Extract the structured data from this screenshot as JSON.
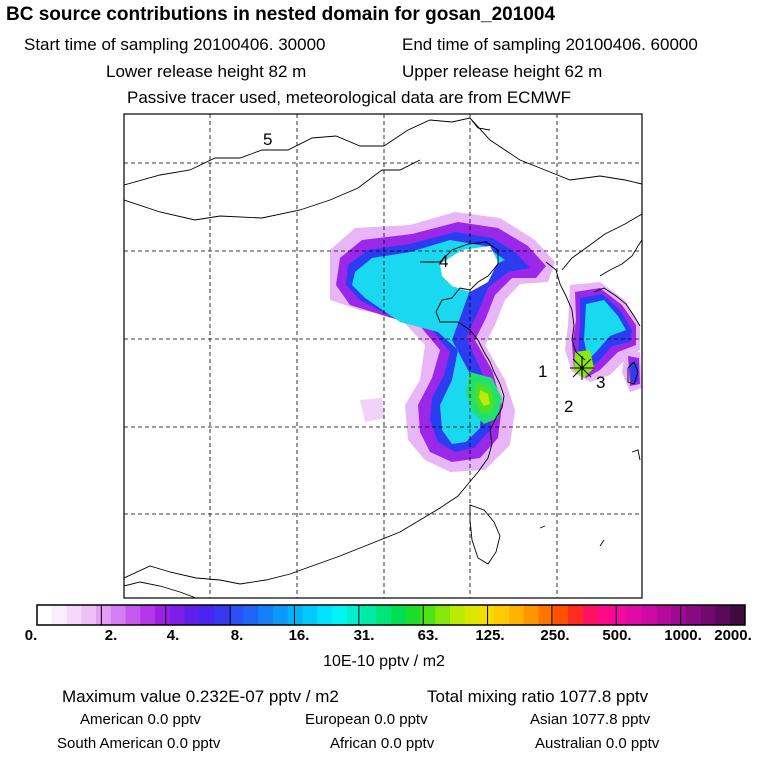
{
  "header": {
    "title": "BC  source contributions in nested domain for gosan_201004",
    "start_label": "Start time of sampling 20100406. 30000",
    "end_label": "End time of sampling 20100406. 60000",
    "lower_label": "Lower release height   82 m",
    "upper_label": "Upper release height   62 m",
    "tracer_label": "Passive tracer used, meteorological data are from ECMWF"
  },
  "map": {
    "markers": [
      "1",
      "2",
      "3",
      "4",
      "5"
    ]
  },
  "colorbar": {
    "labels": [
      "0.",
      "2.",
      "4.",
      "8.",
      "16.",
      "31.",
      "63.",
      "125.",
      "250.",
      "500.",
      "1000.",
      "2000."
    ],
    "colors": [
      "#ffffff",
      "#fbeefc",
      "#f5d8fb",
      "#eec0f8",
      "#e39ef5",
      "#d57df2",
      "#c558ee",
      "#b437ea",
      "#9f1fe6",
      "#7f1ee8",
      "#601fec",
      "#4a25f0",
      "#3a37f2",
      "#2b4ef5",
      "#1f66f7",
      "#1480f9",
      "#0c99fa",
      "#06b2fb",
      "#00cafc",
      "#00e3fc",
      "#00f5f2",
      "#00f0cb",
      "#00eba3",
      "#00e57a",
      "#00df52",
      "#1adf2a",
      "#50e315",
      "#86e70a",
      "#bcea02",
      "#dde600",
      "#f3dc00",
      "#ffca00",
      "#ffb200",
      "#ff9500",
      "#ff7500",
      "#ff5000",
      "#ff2a20",
      "#ff1060",
      "#ff0a8a",
      "#f20aa0",
      "#e00aa8",
      "#cc0aa5",
      "#b60a9c",
      "#a00a90",
      "#880a80",
      "#700a70",
      "#580a58",
      "#400a40"
    ],
    "unit": "10E-10 pptv / m2"
  },
  "stats": {
    "max_label": "Maximum value  0.232E-07 pptv / m2",
    "total_label": "Total mixing ratio     1077.8 pptv",
    "american": "American         0.0 pptv",
    "european": "European        0.0 pptv",
    "asian": "Asian    1077.8 pptv",
    "south_american": "South American         0.0 pptv",
    "african": "African         0.0 pptv",
    "australian": "Australian         0.0 pptv"
  }
}
